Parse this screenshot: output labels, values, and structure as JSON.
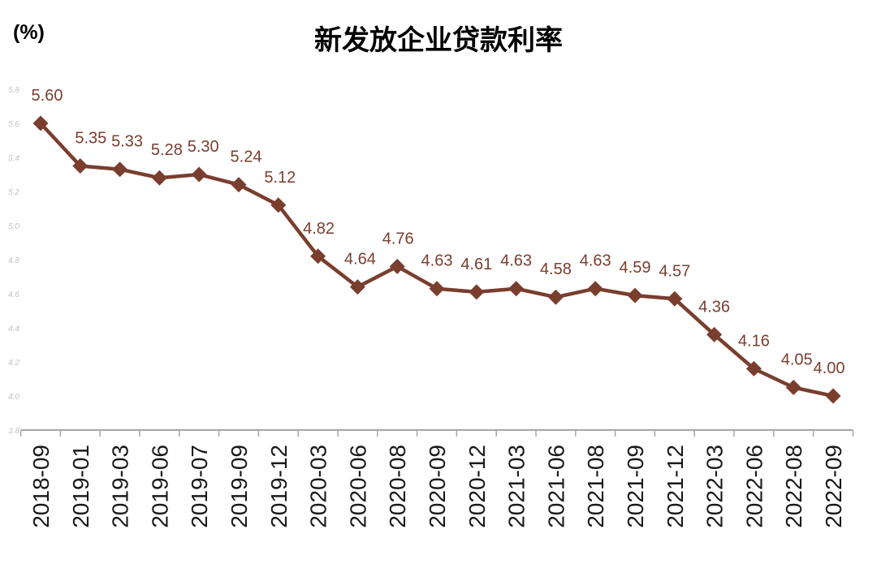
{
  "header": {
    "unit_label": "(%)",
    "title": "新发放企业贷款利率"
  },
  "chart_data": {
    "type": "line",
    "title": "新发放企业贷款利率",
    "ylabel": "(%)",
    "xlabel": "",
    "categories": [
      "2018-09",
      "2019-01",
      "2019-03",
      "2019-06",
      "2019-07",
      "2019-09",
      "2019-12",
      "2020-03",
      "2020-06",
      "2020-08",
      "2020-09",
      "2020-12",
      "2021-03",
      "2021-06",
      "2021-08",
      "2021-09",
      "2021-12",
      "2022-03",
      "2022-06",
      "2022-08",
      "2022-09"
    ],
    "series": [
      {
        "name": "新发放企业贷款利率",
        "values": [
          5.6,
          5.35,
          5.33,
          5.28,
          5.3,
          5.24,
          5.12,
          4.82,
          4.64,
          4.76,
          4.63,
          4.61,
          4.63,
          4.58,
          4.63,
          4.59,
          4.57,
          4.36,
          4.16,
          4.05,
          4.0
        ],
        "labels": [
          "5.60",
          "5.35",
          "5.33",
          "5.28",
          "5.30",
          "5.24",
          "5.12",
          "4.82",
          "4.64",
          "4.76",
          "4.63",
          "4.61",
          "4.63",
          "4.58",
          "4.63",
          "4.59",
          "4.57",
          "4.36",
          "4.16",
          "4.05",
          "4.00"
        ]
      }
    ],
    "ylim": [
      3.8,
      5.8
    ],
    "y_tick_step": 0.2,
    "y_ticks": [
      "5.8",
      "5.6",
      "5.4",
      "5.2",
      "5.0",
      "4.8",
      "4.6",
      "4.4",
      "4.2",
      "4.0",
      "3.8"
    ],
    "grid": false,
    "legend_position": "none",
    "marker": "diamond",
    "colors": {
      "line": "#7A3E2E",
      "marker": "#7A3E2E",
      "data_label": "#7A3E2E",
      "axis": "#A6A6A6",
      "y_tick_label": "#C2C2C2",
      "x_tick_label": "#1A1A1A",
      "title": "#000000",
      "background": "#FFFFFF"
    }
  }
}
